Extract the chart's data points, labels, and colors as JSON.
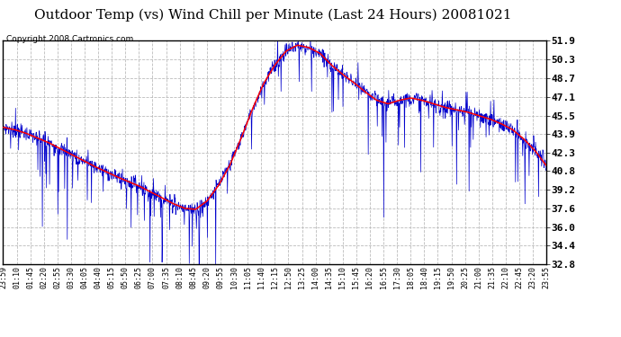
{
  "title": "Outdoor Temp (vs) Wind Chill per Minute (Last 24 Hours) 20081021",
  "copyright_text": "Copyright 2008 Cartronics.com",
  "y_ticks": [
    32.8,
    34.4,
    36.0,
    37.6,
    39.2,
    40.8,
    42.3,
    43.9,
    45.5,
    47.1,
    48.7,
    50.3,
    51.9
  ],
  "x_labels": [
    "23:59",
    "01:10",
    "01:45",
    "02:20",
    "02:55",
    "03:30",
    "04:05",
    "04:40",
    "05:15",
    "05:50",
    "06:25",
    "07:00",
    "07:35",
    "08:10",
    "08:45",
    "09:20",
    "09:55",
    "10:30",
    "11:05",
    "11:40",
    "12:15",
    "12:50",
    "13:25",
    "14:00",
    "14:35",
    "15:10",
    "15:45",
    "16:20",
    "16:55",
    "17:30",
    "18:05",
    "18:40",
    "19:15",
    "19:50",
    "20:25",
    "21:00",
    "21:35",
    "22:10",
    "22:45",
    "23:20",
    "23:55"
  ],
  "ymin": 32.8,
  "ymax": 51.9,
  "title_fontsize": 11,
  "copyright_fontsize": 6.5,
  "background_color": "#ffffff",
  "plot_bg_color": "#ffffff",
  "grid_color": "#bbbbbb",
  "blue_color": "#0000cc",
  "red_color": "#ff0000",
  "red_smooth_key_times": [
    0,
    0.5,
    1.0,
    2.0,
    3.0,
    4.0,
    5.0,
    6.0,
    6.5,
    7.0,
    7.5,
    8.0,
    8.5,
    9.0,
    9.5,
    10.0,
    10.5,
    11.0,
    11.5,
    12.0,
    12.5,
    13.0,
    13.5,
    14.0,
    14.5,
    15.0,
    15.5,
    16.0,
    16.5,
    17.0,
    17.5,
    18.0,
    18.5,
    19.0,
    19.5,
    20.0,
    20.5,
    21.0,
    21.5,
    22.0,
    22.5,
    23.0,
    23.5,
    24.0
  ],
  "red_smooth_key_vals": [
    44.5,
    44.3,
    44.0,
    43.2,
    42.2,
    41.2,
    40.3,
    39.5,
    39.0,
    38.5,
    38.0,
    37.6,
    37.5,
    38.2,
    39.5,
    41.2,
    43.5,
    46.0,
    48.2,
    49.8,
    51.0,
    51.5,
    51.3,
    50.8,
    49.8,
    49.0,
    48.3,
    47.5,
    46.8,
    46.5,
    46.8,
    47.0,
    46.8,
    46.5,
    46.2,
    46.0,
    45.8,
    45.5,
    45.2,
    44.8,
    44.3,
    43.5,
    42.5,
    41.2
  ]
}
